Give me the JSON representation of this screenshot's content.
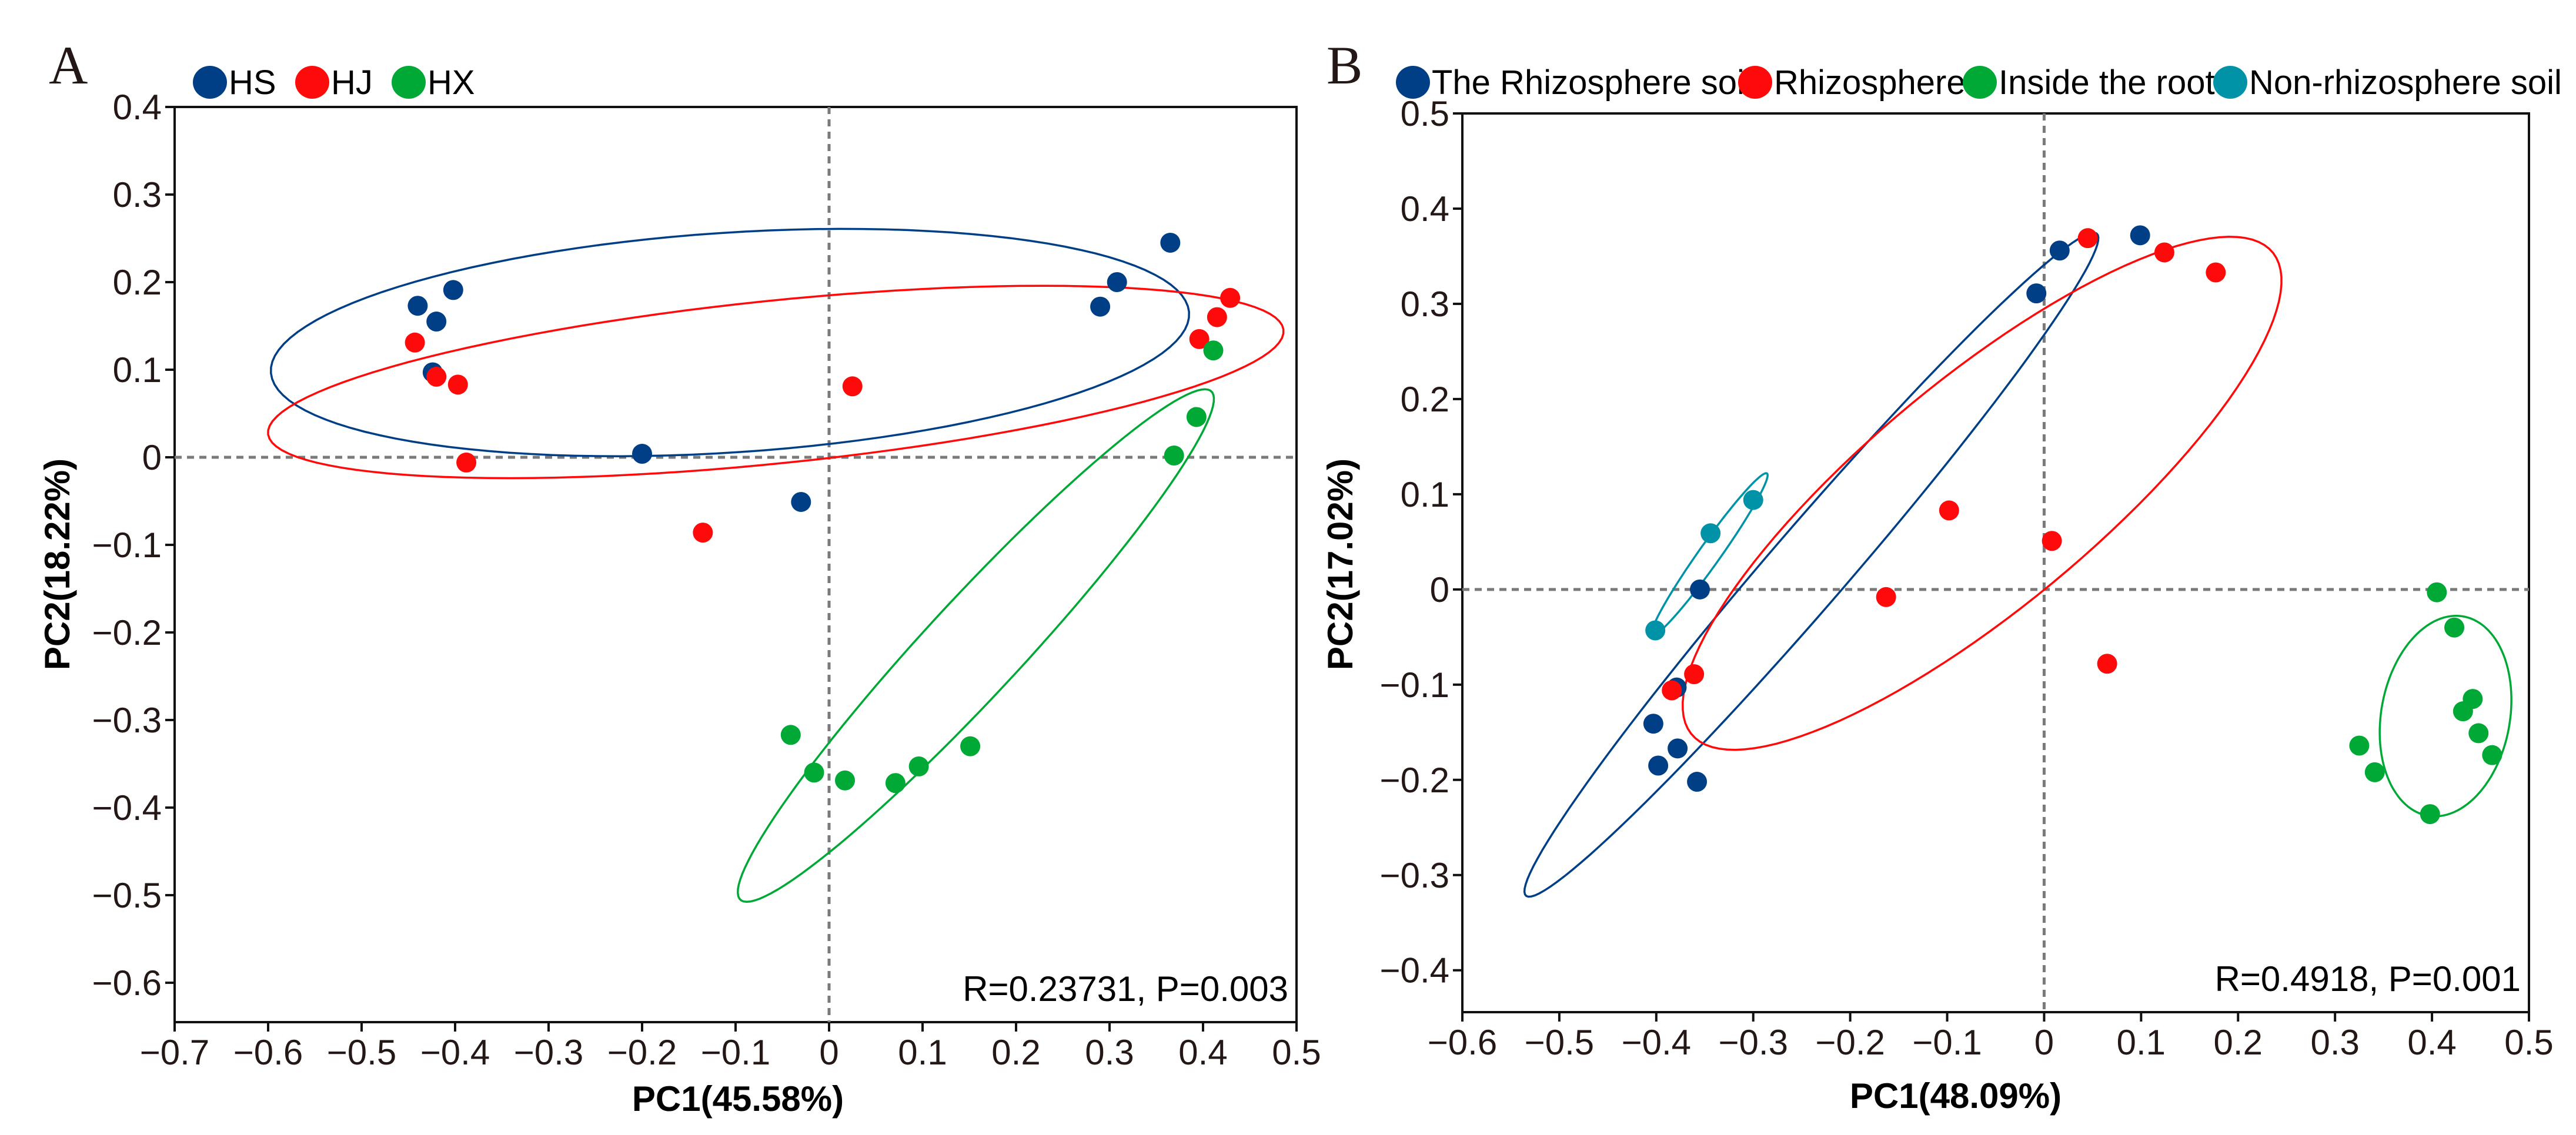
{
  "chart_data": [
    {
      "type": "scatter",
      "panel_label": "A",
      "xlabel": "PC1(45.58%)",
      "ylabel": "PC2(18.22%)",
      "xlim": [
        -0.7,
        0.5
      ],
      "ylim": [
        -0.645,
        0.4
      ],
      "xticks": [
        -0.7,
        -0.6,
        -0.5,
        -0.4,
        -0.3,
        -0.2,
        -0.1,
        0,
        0.1,
        0.2,
        0.3,
        0.4,
        0.5
      ],
      "xtick_labels": [
        "−0.7",
        "−0.6",
        "−0.5",
        "−0.4",
        "−0.3",
        "−0.2",
        "−0.1",
        "0",
        "0.1",
        "0.2",
        "0.3",
        "0.4",
        "0.5"
      ],
      "yticks": [
        0.4,
        0.3,
        0.2,
        0.1,
        0,
        -0.1,
        -0.2,
        -0.3,
        -0.4,
        -0.5,
        -0.6
      ],
      "ytick_labels": [
        "0.4",
        "0.3",
        "0.2",
        "0.1",
        "0",
        "−0.1",
        "−0.2",
        "−0.3",
        "−0.4",
        "−0.5",
        "−0.6"
      ],
      "reference_lines": {
        "x": 0,
        "y": 0,
        "style": "dashed"
      },
      "legend_placement": "top-left",
      "annotation": "R=0.23731, P=0.003",
      "series": [
        {
          "name": "HS",
          "color": "#003f85",
          "points": [
            [
              -0.44,
              0.173
            ],
            [
              -0.42,
              0.155
            ],
            [
              -0.402,
              0.191
            ],
            [
              -0.424,
              0.097
            ],
            [
              -0.2,
              0.004
            ],
            [
              -0.03,
              -0.051
            ],
            [
              0.29,
              0.172
            ],
            [
              0.308,
              0.2
            ],
            [
              0.365,
              0.245
            ]
          ],
          "ellipse": {
            "center": [
              -0.106,
              0.131
            ],
            "axis_major": [
              0.491,
              0.035
            ],
            "axis_minor": [
              -0.011,
              0.125
            ]
          }
        },
        {
          "name": "HJ",
          "color": "#ff0a0a",
          "points": [
            [
              -0.443,
              0.131
            ],
            [
              -0.42,
              0.092
            ],
            [
              -0.397,
              0.083
            ],
            [
              -0.388,
              -0.006
            ],
            [
              -0.135,
              -0.086
            ],
            [
              0.025,
              0.081
            ],
            [
              0.396,
              0.135
            ],
            [
              0.415,
              0.16
            ],
            [
              0.429,
              0.182
            ]
          ],
          "ellipse": {
            "center": [
              -0.057,
              0.086
            ],
            "axis_major": [
              0.543,
              0.06
            ],
            "axis_minor": [
              -0.013,
              0.092
            ]
          }
        },
        {
          "name": "HX",
          "color": "#00a836",
          "points": [
            [
              0.411,
              0.122
            ],
            [
              0.393,
              0.046
            ],
            [
              0.369,
              0.002
            ],
            [
              -0.041,
              -0.317
            ],
            [
              -0.016,
              -0.36
            ],
            [
              0.017,
              -0.369
            ],
            [
              0.071,
              -0.372
            ],
            [
              0.096,
              -0.353
            ],
            [
              0.151,
              -0.33
            ]
          ],
          "ellipse": {
            "center": [
              0.157,
              -0.215
            ],
            "axis_major": [
              0.251,
              0.291
            ],
            "axis_minor": [
              0.043,
              -0.031
            ]
          }
        }
      ]
    },
    {
      "type": "scatter",
      "panel_label": "B",
      "xlabel": "PC1(48.09%)",
      "ylabel": "PC2(17.02%)",
      "xlim": [
        -0.6,
        0.5
      ],
      "ylim": [
        -0.444,
        0.5
      ],
      "xticks": [
        -0.6,
        -0.5,
        -0.4,
        -0.3,
        -0.2,
        -0.1,
        0,
        0.1,
        0.2,
        0.3,
        0.4,
        0.5
      ],
      "xtick_labels": [
        "−0.6",
        "−0.5",
        "−0.4",
        "−0.3",
        "−0.2",
        "−0.1",
        "0",
        "0.1",
        "0.2",
        "0.3",
        "0.4",
        "0.5"
      ],
      "yticks": [
        0.5,
        0.4,
        0.3,
        0.2,
        0.1,
        0,
        -0.1,
        -0.2,
        -0.3,
        -0.4
      ],
      "ytick_labels": [
        "0.5",
        "0.4",
        "0.3",
        "0.2",
        "0.1",
        "0",
        "−0.1",
        "−0.2",
        "−0.3",
        "−0.4"
      ],
      "reference_lines": {
        "x": 0,
        "y": 0,
        "style": "dashed"
      },
      "legend_placement": "top",
      "annotation": "R=0.4918, P=0.001",
      "series": [
        {
          "name": "The Rhizosphere soil",
          "color": "#003f85",
          "points": [
            [
              0.016,
              0.356
            ],
            [
              0.099,
              0.372
            ],
            [
              -0.008,
              0.311
            ],
            [
              -0.355,
              0.0
            ],
            [
              -0.379,
              -0.103
            ],
            [
              -0.403,
              -0.141
            ],
            [
              -0.378,
              -0.167
            ],
            [
              -0.398,
              -0.185
            ],
            [
              -0.358,
              -0.202
            ]
          ],
          "ellipse": {
            "center": [
              -0.24,
              0.026
            ],
            "axis_major": [
              0.294,
              0.348
            ],
            "axis_minor": [
              0.034,
              -0.023
            ]
          }
        },
        {
          "name": "Rhizosphere",
          "color": "#ff0a0a",
          "points": [
            [
              0.045,
              0.369
            ],
            [
              0.124,
              0.354
            ],
            [
              0.177,
              0.333
            ],
            [
              -0.098,
              0.083
            ],
            [
              0.008,
              0.051
            ],
            [
              -0.163,
              -0.008
            ],
            [
              0.065,
              -0.078
            ],
            [
              -0.361,
              -0.089
            ],
            [
              -0.384,
              -0.106
            ]
          ],
          "ellipse": {
            "center": [
              -0.064,
              0.101
            ],
            "axis_major": [
              0.296,
              0.257
            ],
            "axis_minor": [
              0.088,
              -0.081
            ]
          }
        },
        {
          "name": "Inside the root",
          "color": "#00a836",
          "points": [
            [
              0.405,
              -0.003
            ],
            [
              0.423,
              -0.04
            ],
            [
              0.442,
              -0.115
            ],
            [
              0.432,
              -0.128
            ],
            [
              0.448,
              -0.151
            ],
            [
              0.462,
              -0.174
            ],
            [
              0.325,
              -0.164
            ],
            [
              0.341,
              -0.192
            ],
            [
              0.398,
              -0.236
            ]
          ],
          "ellipse": {
            "center": [
              0.414,
              -0.133
            ],
            "axis_major": [
              0.016,
              0.105
            ],
            "axis_minor": [
              0.066,
              -0.008
            ]
          }
        },
        {
          "name": "Non-rhizosphere soil",
          "color": "#0093a8",
          "points": [
            [
              -0.3,
              0.094
            ],
            [
              -0.344,
              0.059
            ],
            [
              -0.401,
              -0.043
            ]
          ],
          "ellipse": {
            "center": [
              -0.345,
              0.037
            ],
            "axis_major": [
              0.059,
              0.085
            ],
            "axis_minor": [
              0.01,
              -0.005
            ]
          }
        }
      ]
    }
  ]
}
